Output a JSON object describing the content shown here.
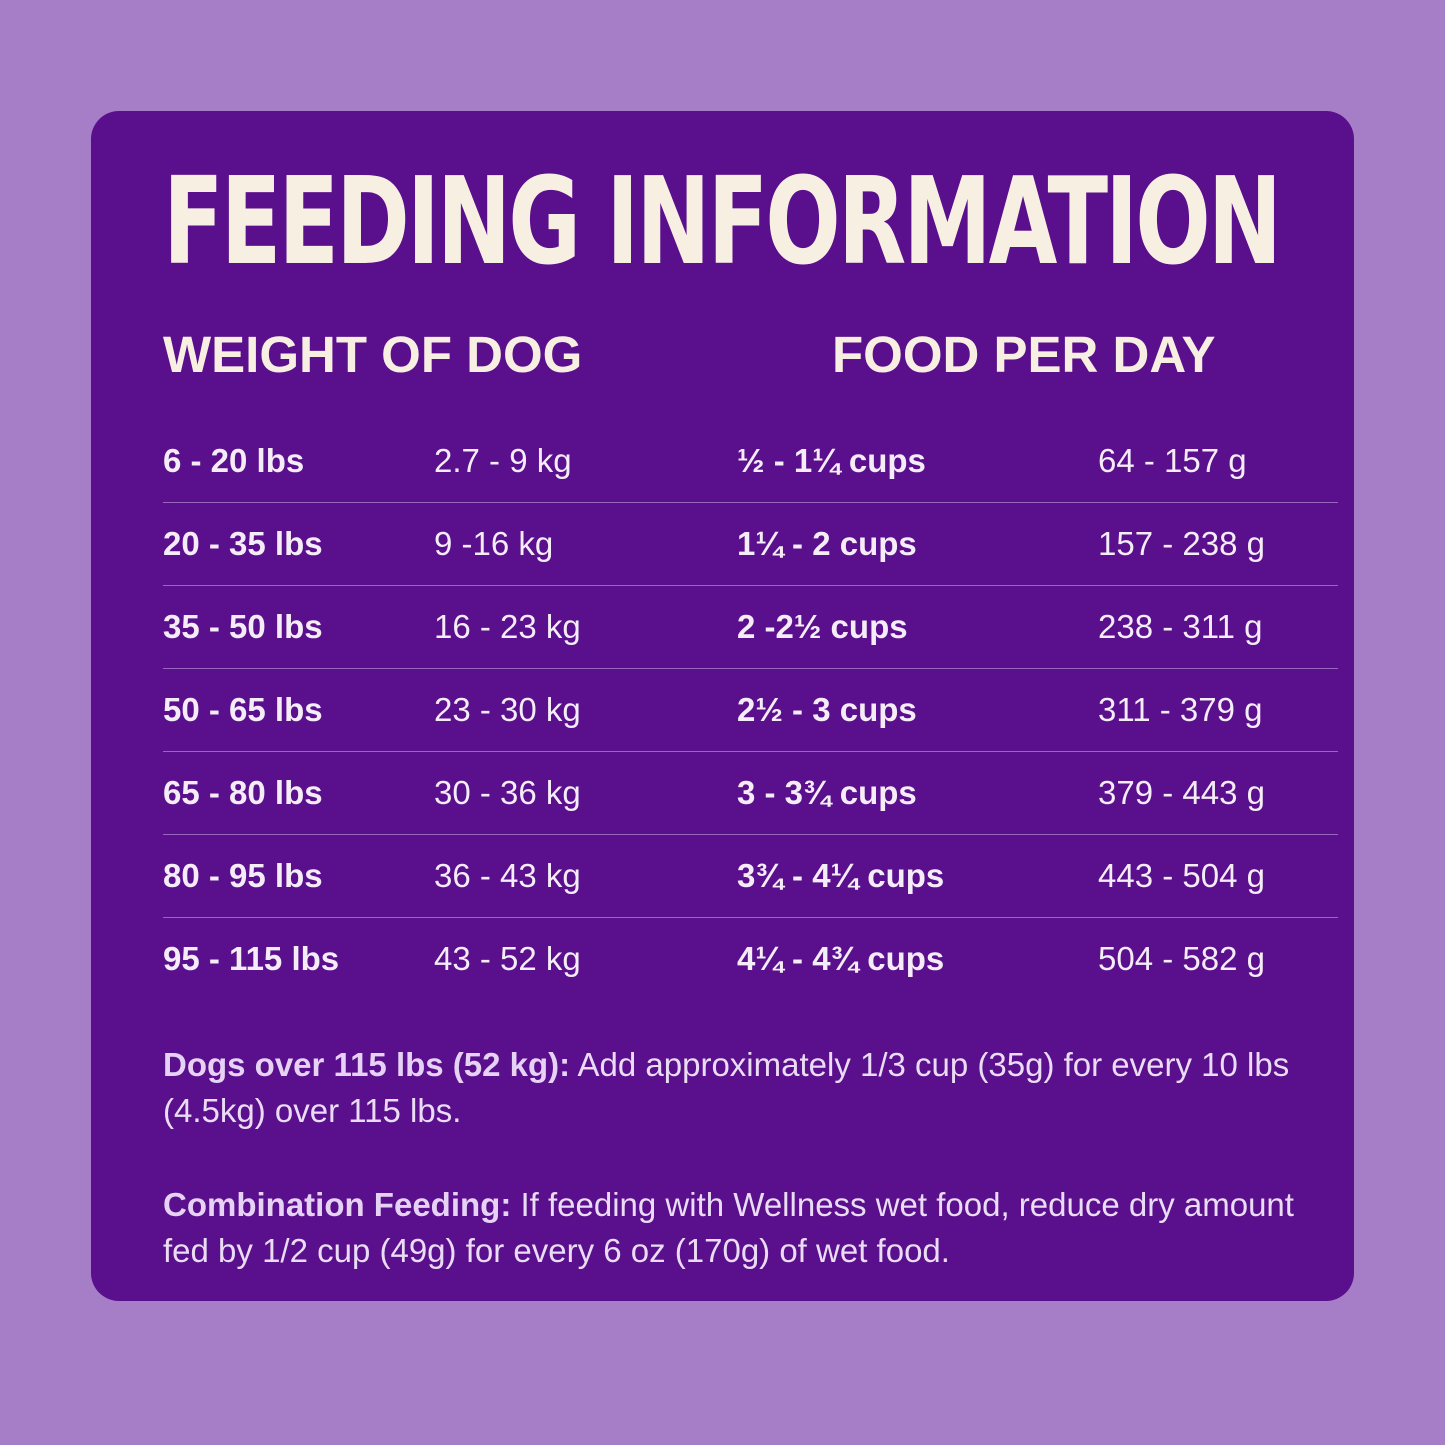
{
  "title": "FEEDING INFORMATION",
  "columns": {
    "weight": "WEIGHT OF DOG",
    "food": "FOOD PER DAY"
  },
  "rows": [
    {
      "lbs": "6 - 20 lbs",
      "kg": "2.7 - 9 kg",
      "cups": "½ - 1¼ cups",
      "grams": "64 - 157 g"
    },
    {
      "lbs": "20 - 35 lbs",
      "kg": "9 -16 kg",
      "cups": "1¼ - 2 cups",
      "grams": "157 - 238 g"
    },
    {
      "lbs": "35 - 50 lbs",
      "kg": "16 - 23 kg",
      "cups": "2 -2½ cups",
      "grams": "238 - 311 g"
    },
    {
      "lbs": "50 - 65 lbs",
      "kg": "23 - 30 kg",
      "cups": "2½ - 3 cups",
      "grams": "311 - 379 g"
    },
    {
      "lbs": "65 - 80 lbs",
      "kg": "30 - 36 kg",
      "cups": "3 - 3¾ cups",
      "grams": "379 - 443 g"
    },
    {
      "lbs": "80 - 95 lbs",
      "kg": "36 - 43 kg",
      "cups": "3¾ - 4¼ cups",
      "grams": "443 - 504 g"
    },
    {
      "lbs": "95 - 115 lbs",
      "kg": "43 - 52 kg",
      "cups": "4¼ - 4¾ cups",
      "grams": "504 - 582 g"
    }
  ],
  "notes": {
    "over_115": {
      "lead": "Dogs over 115 lbs (52 kg):",
      "text": " Add approximately 1/3 cup (35g) for every 10 lbs (4.5kg) over 115 lbs."
    },
    "combination": {
      "lead": "Combination Feeding:",
      "text": " If feeding with Wellness wet food, reduce dry amount fed by 1/2 cup (49g) for every 6 oz (170g) of wet food."
    }
  },
  "colors": {
    "background": "#a67ec8",
    "card": "#5a0f8c",
    "title_text": "#f8efe3",
    "body_text": "#f4ecf6",
    "divider": "#9766bd"
  }
}
